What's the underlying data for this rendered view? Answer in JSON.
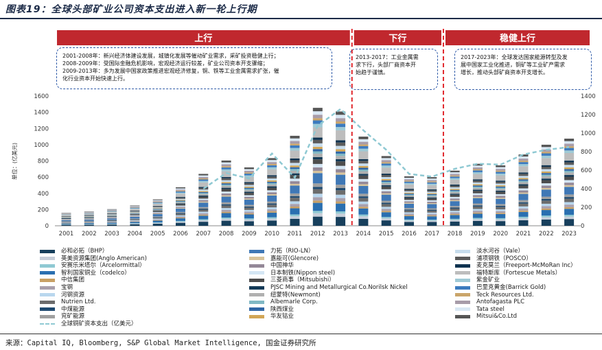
{
  "title": "图表19：全球头部矿业公司资本支出进入新一轮上行期",
  "source": "来源：Capital IQ, Bloomberg, S&P Global Market Intelligence, 国金证券研究所",
  "phases": [
    {
      "label": "上行",
      "from": 2001,
      "to": 2013,
      "note": [
        "2001-2008年：新兴经济体建设发展，城镇化发展等催动矿业需求，采矿投资稳健上行；",
        "2008-2009年：受国际金融危机影响，宏观经济运行较差，矿业公司资本开支骤缩；",
        "2009-2013年：多为发展中国家政策推进宏观经济修复，铜、铁等工业金属需求扩张，催",
        "化行业资本开始快速上行。"
      ]
    },
    {
      "label": "下行",
      "from": 2013,
      "to": 2017,
      "note": [
        "2013-2017：工业金属需",
        "求下行，头部厂商资本开",
        "始趋于谨慎。"
      ]
    },
    {
      "label": "稳健上行",
      "from": 2017,
      "to": 2023,
      "note": [
        "2017-2023年：全球发达国家能源转型及发",
        "展中国家工业化推进，铜矿等工业矿产需求",
        "增长，推动头部矿商资本开支增长。"
      ]
    }
  ],
  "colors": {
    "band": "#c0282e",
    "divider": "#e0262b",
    "note_border": "#2e5aa8"
  },
  "chart_data": {
    "type": "bar",
    "stacked": true,
    "ylabel": "单位：(亿美元)",
    "ylim_left": [
      0,
      1600
    ],
    "yticks_left": [
      0,
      200,
      400,
      600,
      800,
      1000,
      1200,
      1400,
      1600
    ],
    "ylim_right": [
      0,
      1400
    ],
    "yticks_right": [
      0,
      200,
      400,
      600,
      800,
      1000,
      1200,
      1400
    ],
    "categories": [
      "2001",
      "2002",
      "2003",
      "2004",
      "2005",
      "2006",
      "2007",
      "2008",
      "2009",
      "2010",
      "2011",
      "2012",
      "2013",
      "2014",
      "2015",
      "2016",
      "2017",
      "2018",
      "2019",
      "2020",
      "2021",
      "2022",
      "2023"
    ],
    "stack_totals": [
      160,
      175,
      205,
      250,
      325,
      475,
      640,
      805,
      720,
      835,
      1110,
      1455,
      1410,
      1100,
      860,
      610,
      600,
      680,
      765,
      745,
      880,
      1000,
      1075
    ],
    "line": {
      "name": "全球铜矿资本支出（亿美元）",
      "axis": "right",
      "color": "#8fc9d3",
      "values": [
        null,
        null,
        null,
        null,
        null,
        null,
        400,
        570,
        510,
        780,
        520,
        1080,
        1260,
        1030,
        820,
        560,
        530,
        615,
        670,
        660,
        770,
        820,
        850
      ]
    },
    "series": [
      {
        "name": "必和必拓（BHP）",
        "color": "#173f5c"
      },
      {
        "name": "英美资源集团(Anglo American)",
        "color": "#c7ced9"
      },
      {
        "name": "安赛乐米塔尔（Arcelormittal）",
        "color": "#8fc9d3"
      },
      {
        "name": "智利国家铜业（codelco）",
        "color": "#2a6fb0"
      },
      {
        "name": "中信集团",
        "color": "#c8a064"
      },
      {
        "name": "宝钢",
        "color": "#a9a0ad"
      },
      {
        "name": "河钢资源",
        "color": "#b9d7ee"
      },
      {
        "name": "Nutrien Ltd.",
        "color": "#6c6c6c"
      },
      {
        "name": "中煤能源",
        "color": "#1f4a70"
      },
      {
        "name": "兖矿能源",
        "color": "#a0a0a0"
      },
      {
        "name": "力拓（RIO-LN）",
        "color": "#3f78b6"
      },
      {
        "name": "嘉能可(Glencore)",
        "color": "#d8c49c"
      },
      {
        "name": "中国神华",
        "color": "#948897"
      },
      {
        "name": "日本制铁(Nippon steel)",
        "color": "#d4e6f4"
      },
      {
        "name": "三菱商事（Mitsubishi）",
        "color": "#4d4d4d"
      },
      {
        "name": "PJSC Mining and Metallurgical Co.Norilsk Nickel",
        "color": "#133a57"
      },
      {
        "name": "纽蒙特(Newmont)",
        "color": "#b0b0b0"
      },
      {
        "name": "Albemarle Corp.",
        "color": "#80b8c4"
      },
      {
        "name": "陕西煤业",
        "color": "#2f66a6"
      },
      {
        "name": "华友钴业",
        "color": "#d2a656"
      },
      {
        "name": "淡水河谷（Vale）",
        "color": "#c7dcec"
      },
      {
        "name": "浦项钢铁（POSCO）",
        "color": "#5b5b5b"
      },
      {
        "name": "麦克莫兰（Freeport-McMoRan Inc）",
        "color": "#0f3350"
      },
      {
        "name": "福特斯库（Fortescue Metals）",
        "color": "#bdbdbd"
      },
      {
        "name": "紫金矿业",
        "color": "#9fcad6"
      },
      {
        "name": "巴里克黄金(Barrick Gold)",
        "color": "#3c7bbf"
      },
      {
        "name": "Teck Resources Ltd.",
        "color": "#caa56a"
      },
      {
        "name": "Antofagasta PLC",
        "color": "#a89ca9"
      },
      {
        "name": "Tata steel",
        "color": "#d9e8f4"
      },
      {
        "name": "Mitsui&Co.Ltd",
        "color": "#555555"
      }
    ]
  }
}
